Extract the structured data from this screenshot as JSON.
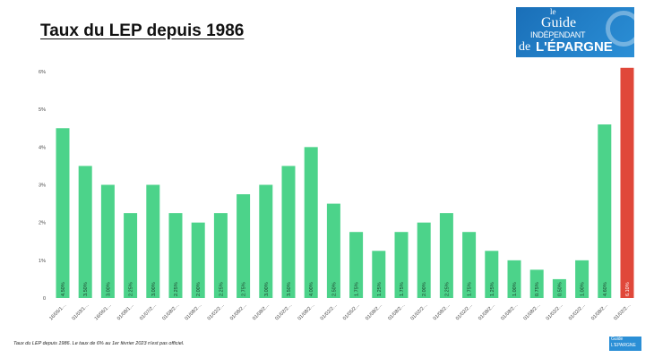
{
  "logo": {
    "line1": "le",
    "line2": "Guide",
    "line3": "INDÉPENDANT",
    "line4": "de",
    "line5": "L'ÉPARGNE"
  },
  "footnote": "Taux du LEP depuis 1986. Le taux de 6% au 1er février 2023 n'est pas officiel.",
  "colors": {
    "bar": "#4cd38a",
    "highlight": "#e0483a"
  },
  "chart_data": {
    "type": "bar",
    "title": "Taux du LEP depuis 1986",
    "xlabel": "",
    "ylabel": "",
    "ylim": [
      0,
      6
    ],
    "yticks": [
      "0",
      "1%",
      "2%",
      "3%",
      "4%",
      "5%",
      "6%"
    ],
    "grid": false,
    "categories": [
      "16/05/1…",
      "01/03/1…",
      "16/06/1…",
      "01/08/1…",
      "01/07/2…",
      "01/08/2…",
      "01/08/2…",
      "01/02/2…",
      "01/08/2…",
      "01/08/2…",
      "01/02/2…",
      "01/08/2…",
      "01/02/2…",
      "01/05/2…",
      "01/08/2…",
      "01/08/2…",
      "01/02/2…",
      "01/08/2…",
      "01/02/2…",
      "01/08/2…",
      "01/08/2…",
      "01/08/2…",
      "01/02/2…",
      "01/02/2…",
      "01/08/2…",
      "01/02/2…"
    ],
    "values": [
      4.5,
      3.5,
      3.0,
      2.25,
      3.0,
      2.25,
      2.0,
      2.25,
      2.75,
      3.0,
      3.5,
      4.0,
      2.5,
      1.75,
      1.25,
      1.75,
      2.0,
      2.25,
      1.75,
      1.25,
      1.0,
      0.75,
      0.5,
      1.0,
      4.6,
      6.1
    ],
    "data_labels": [
      "4.50%",
      "3.50%",
      "3.00%",
      "2.25%",
      "3.00%",
      "2.25%",
      "2.00%",
      "2.25%",
      "2.75%",
      "3.00%",
      "3.50%",
      "4.00%",
      "2.50%",
      "1.75%",
      "1.25%",
      "1.75%",
      "2.00%",
      "2.25%",
      "1.75%",
      "1.25%",
      "1.00%",
      "0.75%",
      "0.50%",
      "1.00%",
      "4.60%",
      "6.10%"
    ],
    "highlight_index": 25
  }
}
